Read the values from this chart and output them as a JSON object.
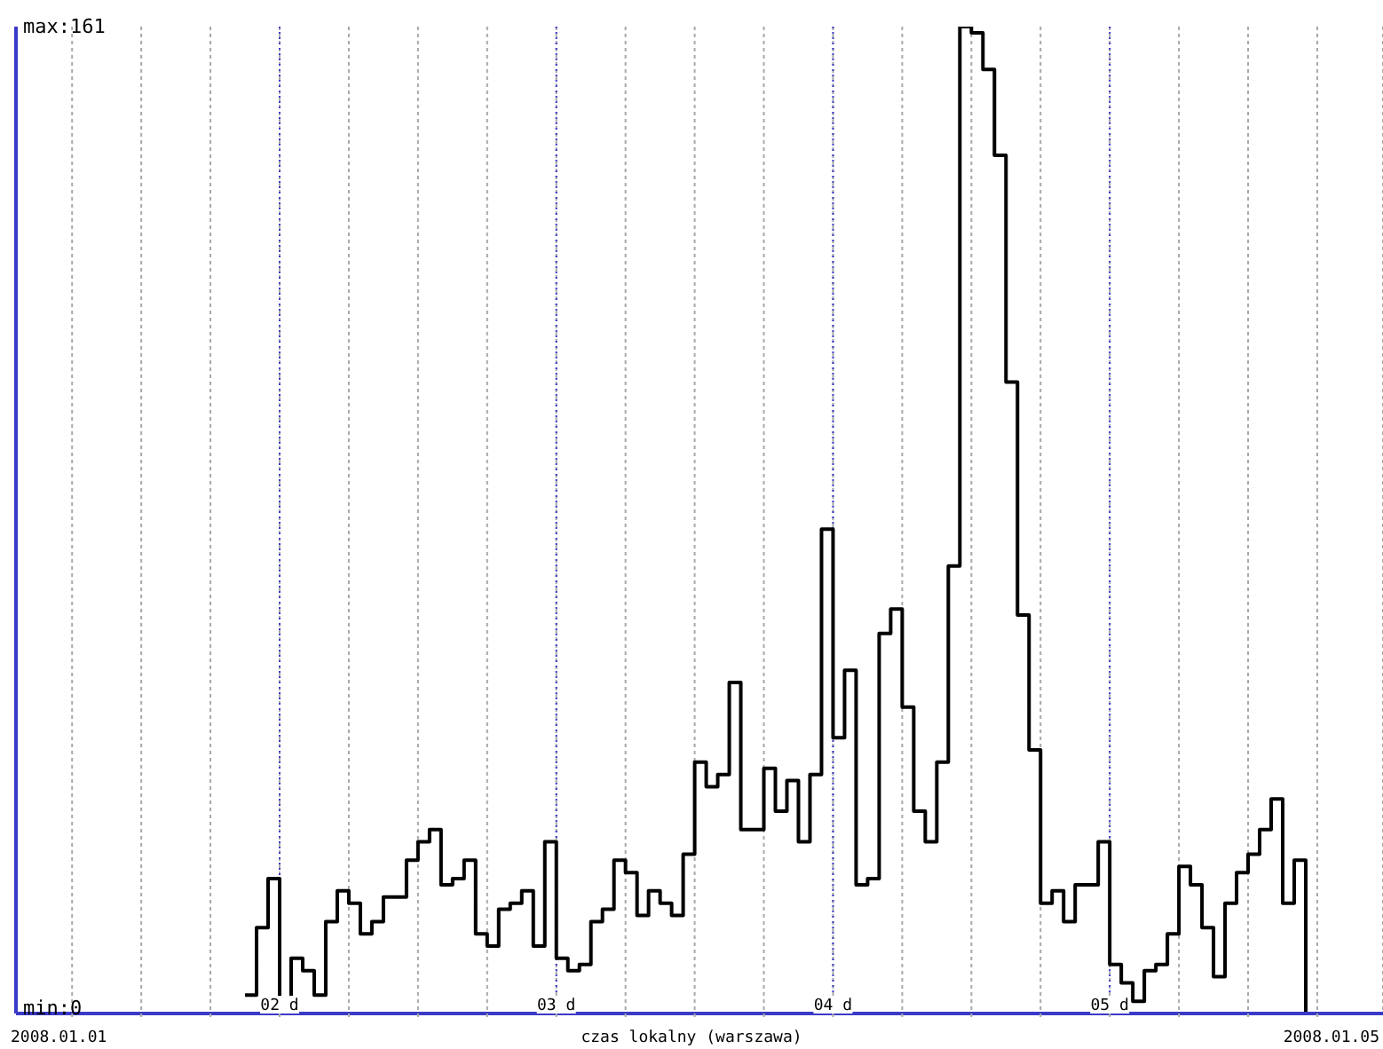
{
  "chart_data": {
    "type": "step",
    "xlabel": "czas lokalny (warszawa)",
    "annotations": [
      "2008.01.01",
      "2008.01.05"
    ],
    "x": [
      "2008-01-01T21:00",
      "2008-01-01T22:00",
      "2008-01-01T23:00",
      "2008-01-02T00:00",
      "2008-01-02T01:00",
      "2008-01-02T02:00",
      "2008-01-02T03:00",
      "2008-01-02T04:00",
      "2008-01-02T05:00",
      "2008-01-02T06:00",
      "2008-01-02T07:00",
      "2008-01-02T08:00",
      "2008-01-02T09:00",
      "2008-01-02T10:00",
      "2008-01-02T11:00",
      "2008-01-02T12:00",
      "2008-01-02T13:00",
      "2008-01-02T14:00",
      "2008-01-02T15:00",
      "2008-01-02T16:00",
      "2008-01-02T17:00",
      "2008-01-02T18:00",
      "2008-01-02T19:00",
      "2008-01-02T20:00",
      "2008-01-02T21:00",
      "2008-01-02T22:00",
      "2008-01-02T23:00",
      "2008-01-03T00:00",
      "2008-01-03T01:00",
      "2008-01-03T02:00",
      "2008-01-03T03:00",
      "2008-01-03T04:00",
      "2008-01-03T05:00",
      "2008-01-03T06:00",
      "2008-01-03T07:00",
      "2008-01-03T08:00",
      "2008-01-03T09:00",
      "2008-01-03T10:00",
      "2008-01-03T11:00",
      "2008-01-03T12:00",
      "2008-01-03T13:00",
      "2008-01-03T14:00",
      "2008-01-03T15:00",
      "2008-01-03T16:00",
      "2008-01-03T17:00",
      "2008-01-03T18:00",
      "2008-01-03T19:00",
      "2008-01-03T20:00",
      "2008-01-03T21:00",
      "2008-01-03T22:00",
      "2008-01-03T23:00",
      "2008-01-04T00:00",
      "2008-01-04T01:00",
      "2008-01-04T02:00",
      "2008-01-04T03:00",
      "2008-01-04T04:00",
      "2008-01-04T05:00",
      "2008-01-04T06:00",
      "2008-01-04T07:00",
      "2008-01-04T08:00",
      "2008-01-04T09:00",
      "2008-01-04T10:00",
      "2008-01-04T11:00",
      "2008-01-04T12:00",
      "2008-01-04T13:00",
      "2008-01-04T14:00",
      "2008-01-04T15:00",
      "2008-01-04T16:00",
      "2008-01-04T17:00",
      "2008-01-04T18:00",
      "2008-01-04T19:00",
      "2008-01-04T20:00",
      "2008-01-04T21:00",
      "2008-01-04T22:00",
      "2008-01-04T23:00",
      "2008-01-05T00:00",
      "2008-01-05T01:00",
      "2008-01-05T02:00",
      "2008-01-05T03:00",
      "2008-01-05T04:00",
      "2008-01-05T05:00",
      "2008-01-05T06:00",
      "2008-01-05T07:00",
      "2008-01-05T08:00",
      "2008-01-05T09:00",
      "2008-01-05T10:00",
      "2008-01-05T11:00",
      "2008-01-05T12:00",
      "2008-01-05T13:00",
      "2008-01-05T14:00",
      "2008-01-05T15:00",
      "2008-01-05T16:00",
      "2008-01-05T17:00"
    ],
    "values": [
      3,
      14,
      22,
      0,
      9,
      7,
      3,
      15,
      20,
      18,
      13,
      15,
      19,
      19,
      25,
      28,
      30,
      21,
      22,
      25,
      13,
      11,
      17,
      18,
      20,
      11,
      28,
      9,
      7,
      8,
      15,
      17,
      25,
      23,
      16,
      20,
      18,
      16,
      26,
      41,
      37,
      39,
      54,
      30,
      30,
      40,
      33,
      38,
      28,
      39,
      79,
      45,
      56,
      21,
      22,
      62,
      66,
      50,
      33,
      28,
      41,
      73,
      161,
      160,
      154,
      140,
      103,
      65,
      43,
      18,
      20,
      15,
      21,
      21,
      28,
      8,
      5,
      2,
      7,
      8,
      13,
      24,
      21,
      14,
      6,
      18,
      23,
      26,
      30,
      35,
      18,
      25,
      0
    ],
    "color": "#000000",
    "xlim": [
      "2008-01-01T01:08",
      "2008-01-05T23:42"
    ],
    "xticks": [
      {
        "value": "2008-01-01T06:00",
        "label": null
      },
      {
        "value": "2008-01-01T12:00",
        "label": null
      },
      {
        "value": "2008-01-01T18:00",
        "label": null
      },
      {
        "value": "2008-01-02",
        "label": "02 d"
      },
      {
        "value": "2008-01-02T06:00",
        "label": null
      },
      {
        "value": "2008-01-02T12:00",
        "label": null
      },
      {
        "value": "2008-01-02T18:00",
        "label": null
      },
      {
        "value": "2008-01-03",
        "label": "03 d"
      },
      {
        "value": "2008-01-03T06:00",
        "label": null
      },
      {
        "value": "2008-01-03T12:00",
        "label": null
      },
      {
        "value": "2008-01-03T18:00",
        "label": null
      },
      {
        "value": "2008-01-04",
        "label": "04 d"
      },
      {
        "value": "2008-01-04T06:00",
        "label": null
      },
      {
        "value": "2008-01-04T12:00",
        "label": null
      },
      {
        "value": "2008-01-04T18:00",
        "label": null
      },
      {
        "value": "2008-01-05",
        "label": "05 d"
      },
      {
        "value": "2008-01-05T06:00",
        "label": null
      },
      {
        "value": "2008-01-05T12:00",
        "label": null
      },
      {
        "value": "2008-01-05T18:00",
        "label": null
      }
    ],
    "ylim": [
      0,
      161
    ],
    "yticks": [
      {
        "value": 0,
        "label": "min:0"
      },
      {
        "value": 161,
        "label": "max:161"
      }
    ],
    "grid": "x"
  }
}
